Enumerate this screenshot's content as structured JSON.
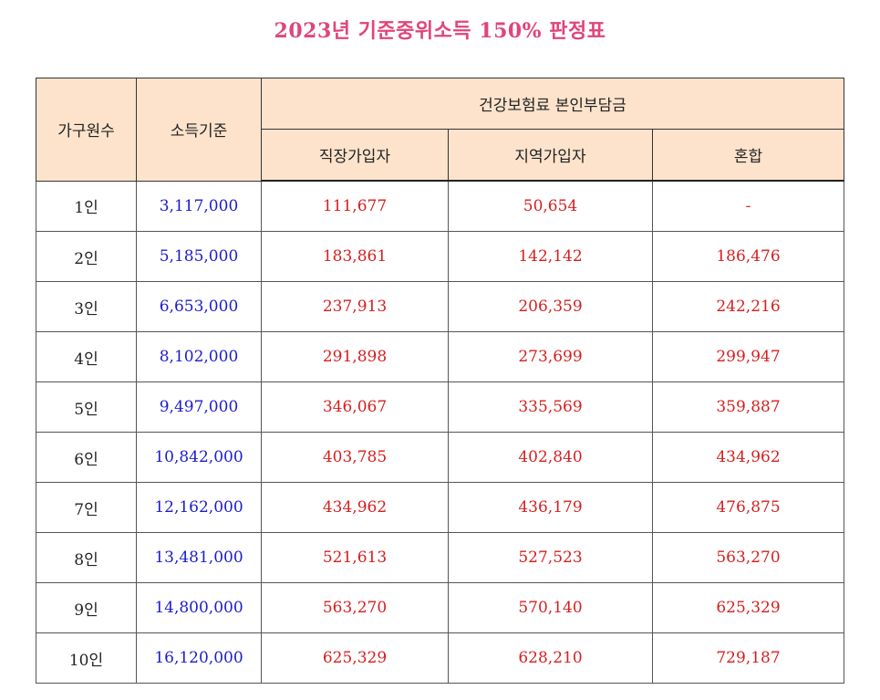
{
  "title": "2023년 기준중위소득 150% 판정표",
  "headers": {
    "household": "가구원수",
    "income": "소득기준",
    "premium_group": "건강보험료 본인부담금",
    "employee": "직장가입자",
    "regional": "지역가입자",
    "mixed": "혼합"
  },
  "colors": {
    "title": "#e0457b",
    "income": "#1c1ccc",
    "premium": "#d61f1f",
    "header_bg": "#fde3cc"
  },
  "rows": [
    {
      "household": "1인",
      "income": "3,117,000",
      "employee": "111,677",
      "regional": "50,654",
      "mixed": "-"
    },
    {
      "household": "2인",
      "income": "5,185,000",
      "employee": "183,861",
      "regional": "142,142",
      "mixed": "186,476"
    },
    {
      "household": "3인",
      "income": "6,653,000",
      "employee": "237,913",
      "regional": "206,359",
      "mixed": "242,216"
    },
    {
      "household": "4인",
      "income": "8,102,000",
      "employee": "291,898",
      "regional": "273,699",
      "mixed": "299,947"
    },
    {
      "household": "5인",
      "income": "9,497,000",
      "employee": "346,067",
      "regional": "335,569",
      "mixed": "359,887"
    },
    {
      "household": "6인",
      "income": "10,842,000",
      "employee": "403,785",
      "regional": "402,840",
      "mixed": "434,962"
    },
    {
      "household": "7인",
      "income": "12,162,000",
      "employee": "434,962",
      "regional": "436,179",
      "mixed": "476,875"
    },
    {
      "household": "8인",
      "income": "13,481,000",
      "employee": "521,613",
      "regional": "527,523",
      "mixed": "563,270"
    },
    {
      "household": "9인",
      "income": "14,800,000",
      "employee": "563,270",
      "regional": "570,140",
      "mixed": "625,329"
    },
    {
      "household": "10인",
      "income": "16,120,000",
      "employee": "625,329",
      "regional": "628,210",
      "mixed": "729,187"
    }
  ]
}
